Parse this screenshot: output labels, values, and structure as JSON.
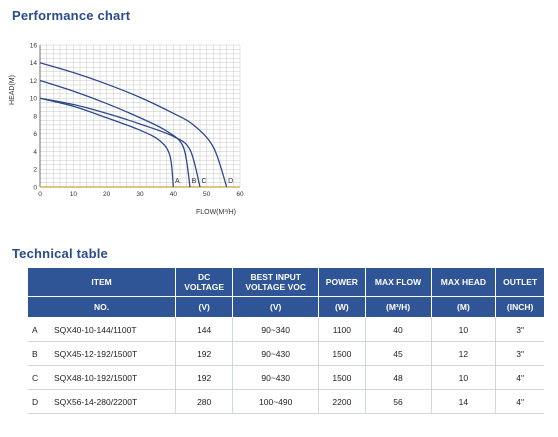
{
  "chart_title": "Performance chart",
  "table_title": "Technical table",
  "chart_data": {
    "type": "line",
    "ylabel": "HEAD(M)",
    "xlabel": "FLOW(M³/H)",
    "xlim": [
      0,
      60
    ],
    "ylim": [
      0,
      16
    ],
    "x_ticks": [
      "0",
      "10",
      "20",
      "30",
      "40",
      "50",
      "60"
    ],
    "y_ticks": [
      "0",
      "2",
      "4",
      "6",
      "8",
      "10",
      "12",
      "14",
      "16"
    ],
    "grid": true,
    "series": [
      {
        "name": "A",
        "x": [
          0,
          10,
          20,
          30,
          36,
          39,
          40
        ],
        "y": [
          10,
          9.1,
          7.8,
          6.4,
          5.2,
          3.5,
          0
        ]
      },
      {
        "name": "B",
        "x": [
          0,
          10,
          20,
          30,
          38,
          43,
          45
        ],
        "y": [
          12,
          10.8,
          9.4,
          7.8,
          6.3,
          4.5,
          0
        ]
      },
      {
        "name": "C",
        "x": [
          0,
          10,
          20,
          30,
          40,
          45,
          48
        ],
        "y": [
          10,
          9.3,
          8.3,
          7.1,
          5.7,
          4.2,
          0
        ]
      },
      {
        "name": "D",
        "x": [
          0,
          10,
          20,
          30,
          40,
          46,
          52,
          56
        ],
        "y": [
          14,
          12.9,
          11.6,
          10.1,
          8.3,
          7.0,
          4.5,
          0
        ]
      }
    ],
    "curve_color": "#2f4a8c"
  },
  "table": {
    "header_top": [
      "ITEM",
      "DC\nVOLTAGE",
      "BEST INPUT\nVOLTAGE VOC",
      "POWER",
      "MAX FLOW",
      "MAX HEAD",
      "OUTLET"
    ],
    "header_units": [
      "NO.",
      "(V)",
      "(V)",
      "(W)",
      "(M³/H)",
      "(M)",
      "(INCH)"
    ],
    "rows": [
      {
        "letter": "A",
        "item": "SQX40-10-144/1100T",
        "dc": "144",
        "voc": "90~340",
        "power": "1100",
        "flow": "40",
        "head": "10",
        "outlet": "3\""
      },
      {
        "letter": "B",
        "item": "SQX45-12-192/1500T",
        "dc": "192",
        "voc": "90~430",
        "power": "1500",
        "flow": "45",
        "head": "12",
        "outlet": "3\""
      },
      {
        "letter": "C",
        "item": "SQX48-10-192/1500T",
        "dc": "192",
        "voc": "90~430",
        "power": "1500",
        "flow": "48",
        "head": "10",
        "outlet": "4\""
      },
      {
        "letter": "D",
        "item": "SQX56-14-280/2200T",
        "dc": "280",
        "voc": "100~490",
        "power": "2200",
        "flow": "56",
        "head": "14",
        "outlet": "4\""
      }
    ]
  },
  "colors": {
    "title": "#2a4b8d",
    "table_header": "#2f5597",
    "grid": "#c8c8c8",
    "curve": "#2f4a8c"
  }
}
